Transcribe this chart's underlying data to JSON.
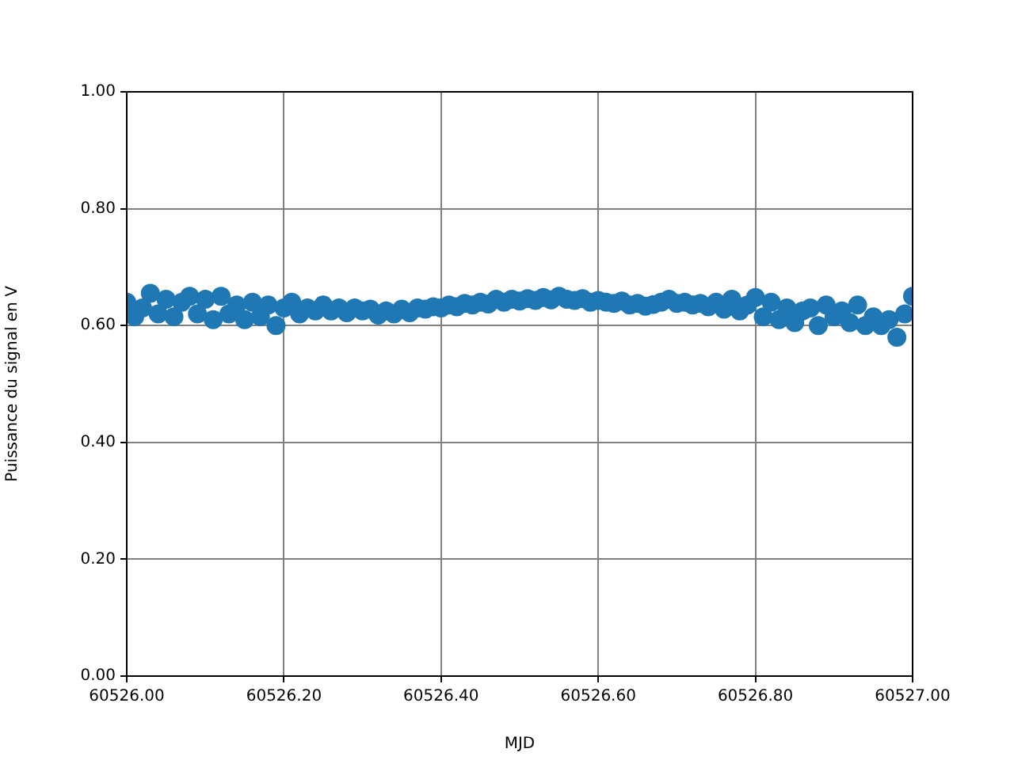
{
  "chart_data": {
    "type": "scatter",
    "xlabel": "MJD",
    "ylabel": "Puissance du signal en V",
    "marker": "circle",
    "grid": true,
    "xlim": [
      60526,
      60527
    ],
    "ylim": [
      0,
      1
    ],
    "xticks": [
      {
        "value": 60526,
        "label": "60526.00"
      },
      {
        "value": 60526.2,
        "label": "60526.20"
      },
      {
        "value": 60526.4,
        "label": "60526.40"
      },
      {
        "value": 60526.6,
        "label": "60526.60"
      },
      {
        "value": 60526.8,
        "label": "60526.80"
      },
      {
        "value": 60527,
        "label": "60527.00"
      }
    ],
    "yticks": [
      {
        "value": 0,
        "label": "0.00"
      },
      {
        "value": 0.2,
        "label": "0.20"
      },
      {
        "value": 0.4,
        "label": "0.40"
      },
      {
        "value": 0.6,
        "label": "0.60"
      },
      {
        "value": 0.8,
        "label": "0.80"
      },
      {
        "value": 1,
        "label": "1.00"
      }
    ],
    "series": [
      {
        "color": "#1f77b4",
        "x": [
          60526.0,
          60526.01,
          60526.02,
          60526.03,
          60526.04,
          60526.05,
          60526.06,
          60526.07,
          60526.08,
          60526.09,
          60526.1,
          60526.11,
          60526.12,
          60526.13,
          60526.14,
          60526.15,
          60526.16,
          60526.17,
          60526.18,
          60526.19,
          60526.2,
          60526.21,
          60526.22,
          60526.23,
          60526.24,
          60526.25,
          60526.26,
          60526.27,
          60526.28,
          60526.29,
          60526.3,
          60526.31,
          60526.32,
          60526.33,
          60526.34,
          60526.35,
          60526.36,
          60526.37,
          60526.38,
          60526.39,
          60526.4,
          60526.41,
          60526.42,
          60526.43,
          60526.44,
          60526.45,
          60526.46,
          60526.47,
          60526.48,
          60526.49,
          60526.5,
          60526.51,
          60526.52,
          60526.53,
          60526.54,
          60526.55,
          60526.56,
          60526.57,
          60526.58,
          60526.59,
          60526.6,
          60526.61,
          60526.62,
          60526.63,
          60526.64,
          60526.65,
          60526.66,
          60526.67,
          60526.68,
          60526.69,
          60526.7,
          60526.71,
          60526.72,
          60526.73,
          60526.74,
          60526.75,
          60526.76,
          60526.77,
          60526.78,
          60526.79,
          60526.8,
          60526.81,
          60526.82,
          60526.83,
          60526.84,
          60526.85,
          60526.86,
          60526.87,
          60526.88,
          60526.89,
          60526.9,
          60526.91,
          60526.92,
          60526.93,
          60526.94,
          60526.95,
          60526.96,
          60526.97,
          60526.98,
          60526.99,
          60527.0
        ],
        "values": [
          0.64,
          0.615,
          0.63,
          0.655,
          0.62,
          0.645,
          0.615,
          0.64,
          0.65,
          0.62,
          0.645,
          0.61,
          0.65,
          0.62,
          0.635,
          0.61,
          0.64,
          0.615,
          0.635,
          0.6,
          0.63,
          0.64,
          0.62,
          0.63,
          0.625,
          0.635,
          0.625,
          0.63,
          0.622,
          0.63,
          0.625,
          0.628,
          0.618,
          0.625,
          0.62,
          0.628,
          0.622,
          0.63,
          0.628,
          0.632,
          0.63,
          0.635,
          0.632,
          0.638,
          0.635,
          0.64,
          0.637,
          0.645,
          0.64,
          0.645,
          0.642,
          0.646,
          0.643,
          0.648,
          0.644,
          0.65,
          0.645,
          0.643,
          0.646,
          0.64,
          0.643,
          0.64,
          0.638,
          0.642,
          0.635,
          0.638,
          0.633,
          0.636,
          0.64,
          0.645,
          0.638,
          0.64,
          0.635,
          0.638,
          0.632,
          0.64,
          0.628,
          0.645,
          0.625,
          0.635,
          0.648,
          0.615,
          0.64,
          0.61,
          0.63,
          0.605,
          0.625,
          0.63,
          0.6,
          0.635,
          0.615,
          0.625,
          0.605,
          0.635,
          0.6,
          0.615,
          0.6,
          0.61,
          0.58,
          0.62,
          0.65
        ]
      }
    ]
  }
}
